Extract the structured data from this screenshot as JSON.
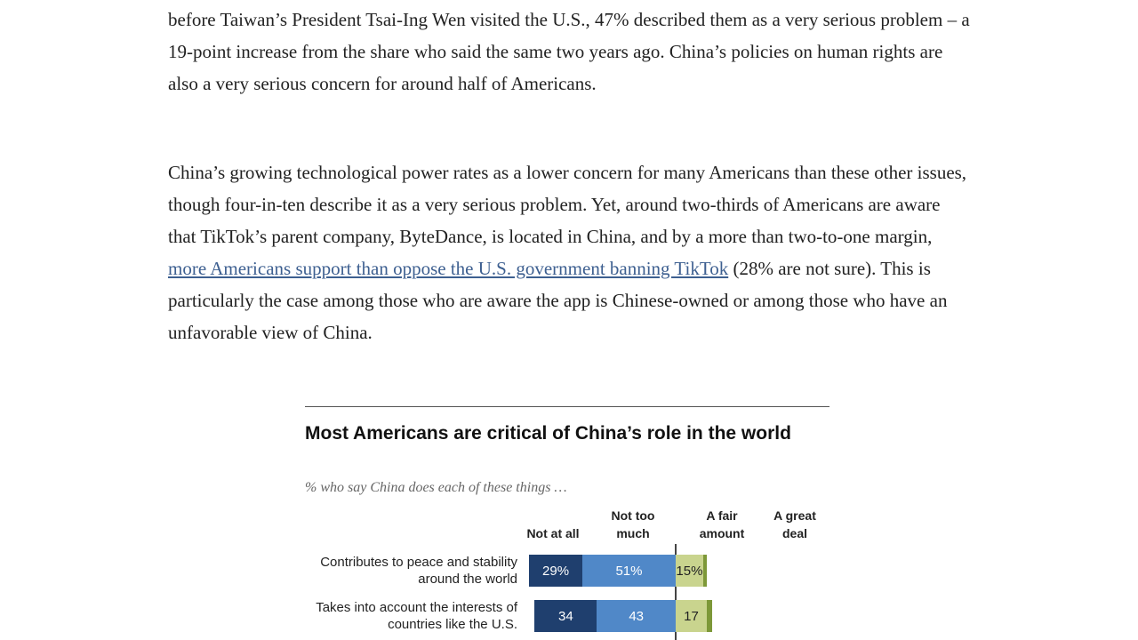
{
  "article": {
    "paragraphs": [
      {
        "text": "before Taiwan’s President Tsai-Ing Wen visited the U.S., 47% described them as a very serious problem – a 19-point increase from the share who said the same two years ago. China’s policies on human rights are also a very serious concern for around half of Americans."
      },
      {
        "before": "China’s growing technological power rates as a lower concern for many Americans than these other issues, though four-in-ten describe it as a very serious problem. Yet, around two-thirds of Americans are aware that TikTok’s parent company, ByteDance, is located in China, and by a more than two-to-one margin, ",
        "link": "more Americans support than oppose the U.S. government banning TikTok",
        "after": " (28% are not sure). This is particularly the case among those who are aware the app is Chinese-owned or among those who have an unfavorable view of China."
      }
    ]
  },
  "chart_data": {
    "type": "bar",
    "stacked": "diverging",
    "title": "Most Americans are critical of China’s role in the world",
    "subtitle": "% who say China does each of these things …",
    "categories": [
      "Contributes to peace and stability around the world",
      "Takes into account the interests of countries like the U.S."
    ],
    "series": [
      {
        "name": "Not at all",
        "color": "#1f3f6e",
        "values": [
          29,
          34
        ],
        "value_labels": [
          "29%",
          "34"
        ]
      },
      {
        "name": "Not too much",
        "color": "#5088c8",
        "values": [
          51,
          43
        ],
        "value_labels": [
          "51%",
          "43"
        ]
      },
      {
        "name": "A fair amount",
        "color": "#c9d48e",
        "values": [
          15,
          17
        ],
        "value_labels": [
          "15%",
          "17"
        ]
      },
      {
        "name": "A great deal",
        "color": "#7d9838",
        "values": [
          2,
          3
        ],
        "value_labels": [
          null,
          null
        ]
      }
    ]
  }
}
